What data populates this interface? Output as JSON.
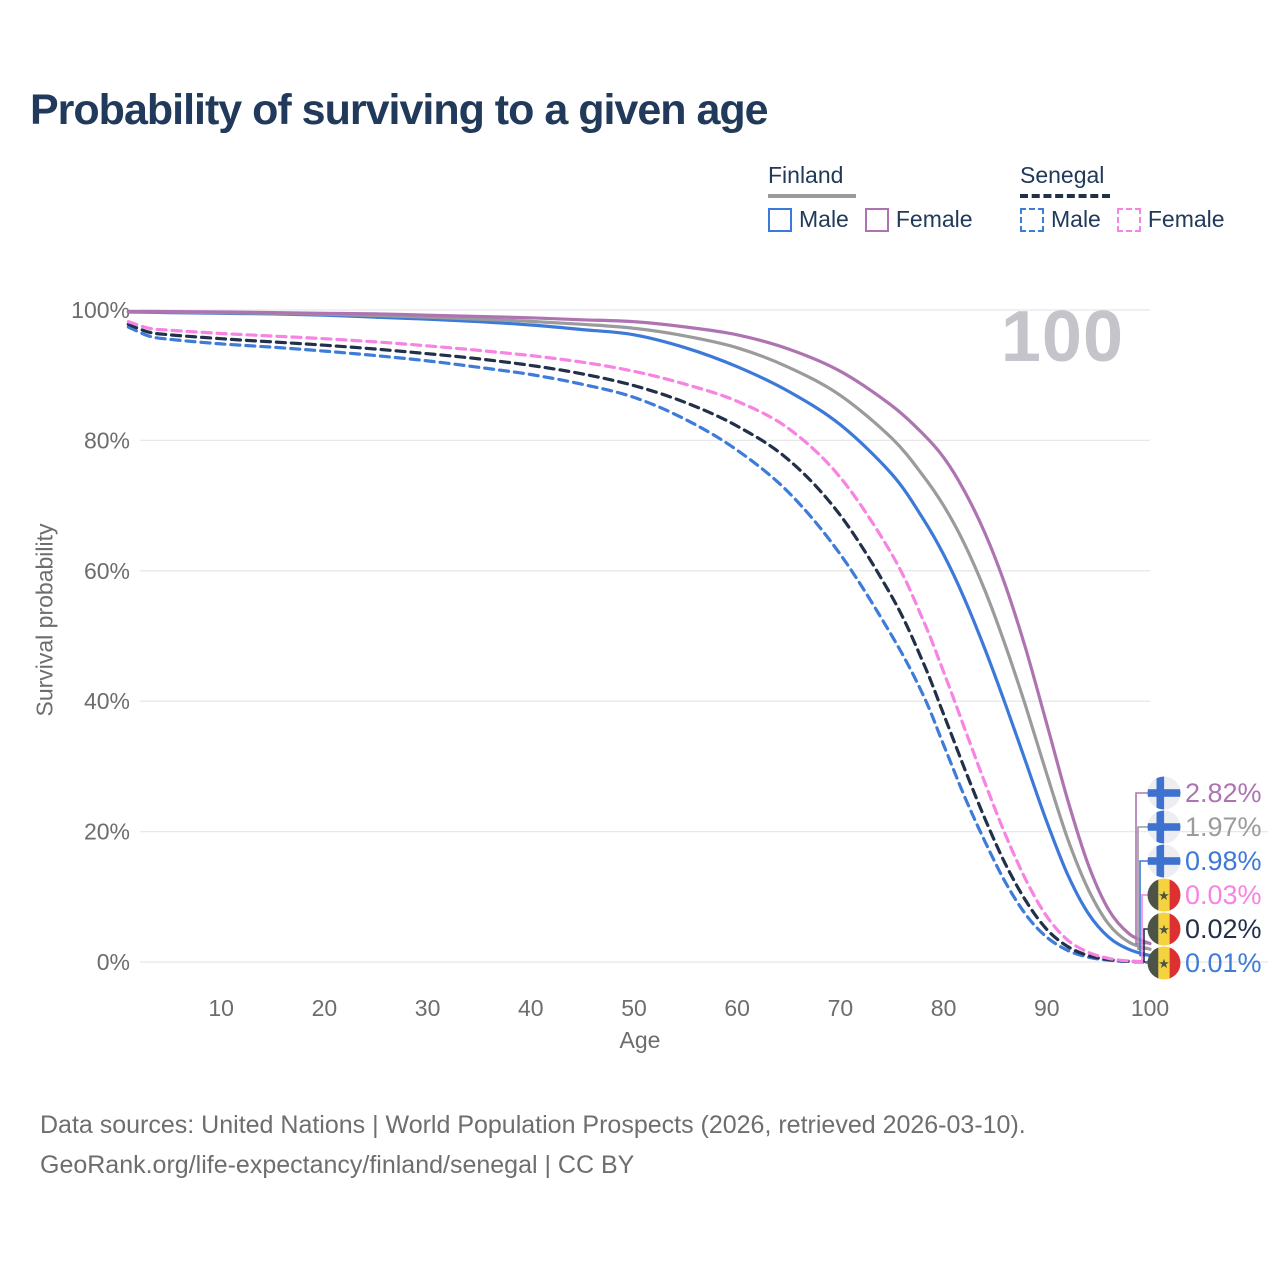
{
  "title": "Probability of surviving to a given age",
  "watermark_age": "100",
  "legend": {
    "groups": [
      {
        "label": "Finland",
        "line_style": "solid",
        "line_color": "#9b9b9b",
        "items": [
          {
            "label": "Male",
            "color": "#3c79d8",
            "dashed": false
          },
          {
            "label": "Female",
            "color": "#ae74b2",
            "dashed": false
          }
        ]
      },
      {
        "label": "Senegal",
        "line_style": "dashed",
        "line_color": "#22304a",
        "items": [
          {
            "label": "Male",
            "color": "#3e7cd9",
            "dashed": true
          },
          {
            "label": "Female",
            "color": "#f783e2",
            "dashed": true
          }
        ]
      }
    ]
  },
  "chart_data": {
    "type": "line",
    "title": "Probability of surviving to a given age",
    "xlabel": "Age",
    "ylabel": "Survival probability",
    "xlim": [
      0,
      100
    ],
    "ylim": [
      0,
      100
    ],
    "x_ticks": [
      10,
      20,
      30,
      40,
      50,
      60,
      70,
      80,
      90,
      100
    ],
    "y_ticks": [
      0,
      20,
      40,
      60,
      80,
      100
    ],
    "y_tick_suffix": "%",
    "grid": true,
    "grid_color": "#e8e8ea",
    "tick_color": "#6d6d6d",
    "series": [
      {
        "key": "senegal-male",
        "name": "Senegal Male",
        "color": "#3e7cd9",
        "dashed": true,
        "points": [
          [
            1,
            97.4
          ],
          [
            3,
            96.0
          ],
          [
            5,
            95.5
          ],
          [
            10,
            94.8
          ],
          [
            15,
            94.3
          ],
          [
            20,
            93.7
          ],
          [
            25,
            93.0
          ],
          [
            30,
            92.2
          ],
          [
            35,
            91.2
          ],
          [
            40,
            90.1
          ],
          [
            45,
            88.6
          ],
          [
            50,
            86.6
          ],
          [
            55,
            83.2
          ],
          [
            60,
            78.5
          ],
          [
            65,
            72.0
          ],
          [
            70,
            62.5
          ],
          [
            75,
            50.0
          ],
          [
            78,
            41.0
          ],
          [
            80,
            33.3
          ],
          [
            82,
            25.5
          ],
          [
            84,
            18.5
          ],
          [
            86,
            12.2
          ],
          [
            88,
            7.2
          ],
          [
            90,
            3.8
          ],
          [
            92,
            1.8
          ],
          [
            94,
            0.75
          ],
          [
            96,
            0.28
          ],
          [
            98,
            0.07
          ],
          [
            100,
            0.01
          ]
        ]
      },
      {
        "key": "senegal-total",
        "name": "Senegal",
        "color": "#22304a",
        "dashed": true,
        "points": [
          [
            1,
            97.8
          ],
          [
            3,
            96.6
          ],
          [
            5,
            96.2
          ],
          [
            10,
            95.6
          ],
          [
            15,
            95.1
          ],
          [
            20,
            94.6
          ],
          [
            25,
            94.0
          ],
          [
            30,
            93.3
          ],
          [
            35,
            92.5
          ],
          [
            40,
            91.5
          ],
          [
            45,
            90.2
          ],
          [
            50,
            88.4
          ],
          [
            55,
            85.8
          ],
          [
            60,
            82.2
          ],
          [
            65,
            77.0
          ],
          [
            70,
            68.5
          ],
          [
            75,
            56.0
          ],
          [
            78,
            46.0
          ],
          [
            80,
            38.0
          ],
          [
            82,
            29.8
          ],
          [
            84,
            22.0
          ],
          [
            86,
            15.0
          ],
          [
            88,
            9.3
          ],
          [
            90,
            5.0
          ],
          [
            92,
            2.4
          ],
          [
            94,
            1.0
          ],
          [
            96,
            0.38
          ],
          [
            98,
            0.1
          ],
          [
            100,
            0.02
          ]
        ]
      },
      {
        "key": "senegal-female",
        "name": "Senegal Female",
        "color": "#f783e2",
        "dashed": true,
        "points": [
          [
            1,
            98.2
          ],
          [
            3,
            97.2
          ],
          [
            5,
            96.9
          ],
          [
            10,
            96.4
          ],
          [
            15,
            96.0
          ],
          [
            20,
            95.6
          ],
          [
            25,
            95.1
          ],
          [
            30,
            94.5
          ],
          [
            35,
            93.8
          ],
          [
            40,
            93.0
          ],
          [
            45,
            92.0
          ],
          [
            50,
            90.6
          ],
          [
            55,
            88.6
          ],
          [
            60,
            86.0
          ],
          [
            65,
            81.8
          ],
          [
            70,
            74.3
          ],
          [
            75,
            62.5
          ],
          [
            78,
            52.5
          ],
          [
            80,
            44.5
          ],
          [
            82,
            36.0
          ],
          [
            84,
            27.5
          ],
          [
            86,
            19.5
          ],
          [
            88,
            12.5
          ],
          [
            90,
            7.0
          ],
          [
            92,
            3.4
          ],
          [
            94,
            1.5
          ],
          [
            96,
            0.55
          ],
          [
            98,
            0.15
          ],
          [
            100,
            0.03
          ]
        ]
      },
      {
        "key": "finland-male",
        "name": "Finland Male",
        "color": "#3c79d8",
        "dashed": false,
        "points": [
          [
            1,
            99.7
          ],
          [
            5,
            99.6
          ],
          [
            10,
            99.5
          ],
          [
            15,
            99.4
          ],
          [
            20,
            99.2
          ],
          [
            25,
            98.9
          ],
          [
            30,
            98.6
          ],
          [
            35,
            98.2
          ],
          [
            40,
            97.7
          ],
          [
            45,
            97.0
          ],
          [
            50,
            96.2
          ],
          [
            55,
            94.2
          ],
          [
            60,
            91.3
          ],
          [
            65,
            87.5
          ],
          [
            70,
            82.4
          ],
          [
            75,
            74.8
          ],
          [
            78,
            68.0
          ],
          [
            80,
            62.5
          ],
          [
            82,
            55.8
          ],
          [
            84,
            48.0
          ],
          [
            86,
            39.5
          ],
          [
            88,
            30.5
          ],
          [
            90,
            21.5
          ],
          [
            92,
            13.5
          ],
          [
            94,
            7.5
          ],
          [
            96,
            3.8
          ],
          [
            98,
            1.9
          ],
          [
            100,
            0.98
          ]
        ]
      },
      {
        "key": "finland-total",
        "name": "Finland",
        "color": "#9b9b9b",
        "dashed": false,
        "points": [
          [
            1,
            99.75
          ],
          [
            5,
            99.7
          ],
          [
            10,
            99.6
          ],
          [
            15,
            99.5
          ],
          [
            20,
            99.35
          ],
          [
            25,
            99.15
          ],
          [
            30,
            98.9
          ],
          [
            35,
            98.6
          ],
          [
            40,
            98.25
          ],
          [
            45,
            97.8
          ],
          [
            50,
            97.2
          ],
          [
            55,
            96.0
          ],
          [
            60,
            94.2
          ],
          [
            65,
            91.2
          ],
          [
            70,
            86.9
          ],
          [
            75,
            80.3
          ],
          [
            78,
            74.6
          ],
          [
            80,
            70.0
          ],
          [
            82,
            64.2
          ],
          [
            84,
            57.0
          ],
          [
            86,
            48.5
          ],
          [
            88,
            39.0
          ],
          [
            90,
            28.8
          ],
          [
            92,
            19.0
          ],
          [
            94,
            11.2
          ],
          [
            96,
            5.8
          ],
          [
            98,
            3.0
          ],
          [
            100,
            1.97
          ]
        ]
      },
      {
        "key": "finland-female",
        "name": "Finland Female",
        "color": "#ae74b2",
        "dashed": false,
        "points": [
          [
            1,
            99.8
          ],
          [
            5,
            99.75
          ],
          [
            10,
            99.7
          ],
          [
            15,
            99.6
          ],
          [
            20,
            99.5
          ],
          [
            25,
            99.4
          ],
          [
            30,
            99.2
          ],
          [
            35,
            99.0
          ],
          [
            40,
            98.8
          ],
          [
            45,
            98.5
          ],
          [
            50,
            98.2
          ],
          [
            55,
            97.4
          ],
          [
            60,
            96.2
          ],
          [
            65,
            94.0
          ],
          [
            70,
            90.6
          ],
          [
            75,
            85.3
          ],
          [
            78,
            81.0
          ],
          [
            80,
            77.4
          ],
          [
            82,
            72.3
          ],
          [
            84,
            65.8
          ],
          [
            86,
            57.7
          ],
          [
            88,
            47.8
          ],
          [
            90,
            36.5
          ],
          [
            92,
            25.0
          ],
          [
            94,
            15.0
          ],
          [
            96,
            8.0
          ],
          [
            98,
            4.3
          ],
          [
            100,
            2.82
          ]
        ]
      }
    ]
  },
  "end_labels": [
    {
      "value": "2.82%",
      "flag": "finland",
      "color": "#ae74b2",
      "series_key": "finland-female"
    },
    {
      "value": "1.97%",
      "flag": "finland",
      "color": "#9b9b9b",
      "series_key": "finland-total"
    },
    {
      "value": "0.98%",
      "flag": "finland",
      "color": "#3c79d8",
      "series_key": "finland-male"
    },
    {
      "value": "0.03%",
      "flag": "senegal",
      "color": "#f783e2",
      "series_key": "senegal-female"
    },
    {
      "value": "0.02%",
      "flag": "senegal",
      "color": "#22304a",
      "series_key": "senegal-total"
    },
    {
      "value": "0.01%",
      "flag": "senegal",
      "color": "#3e7cd9",
      "series_key": "senegal-male"
    }
  ],
  "flags": {
    "finland": {
      "bg": "#eceef2",
      "cross": "#3f72cf"
    },
    "senegal": {
      "green": "#4c5446",
      "yellow": "#f5d33f",
      "red": "#dd3030",
      "star": "#4c5446"
    }
  },
  "footer": {
    "line1": "Data sources: United Nations | World Population Prospects (2026, retrieved 2026-03-10).",
    "line2": "GeoRank.org/life-expectancy/finland/senegal | CC BY"
  }
}
